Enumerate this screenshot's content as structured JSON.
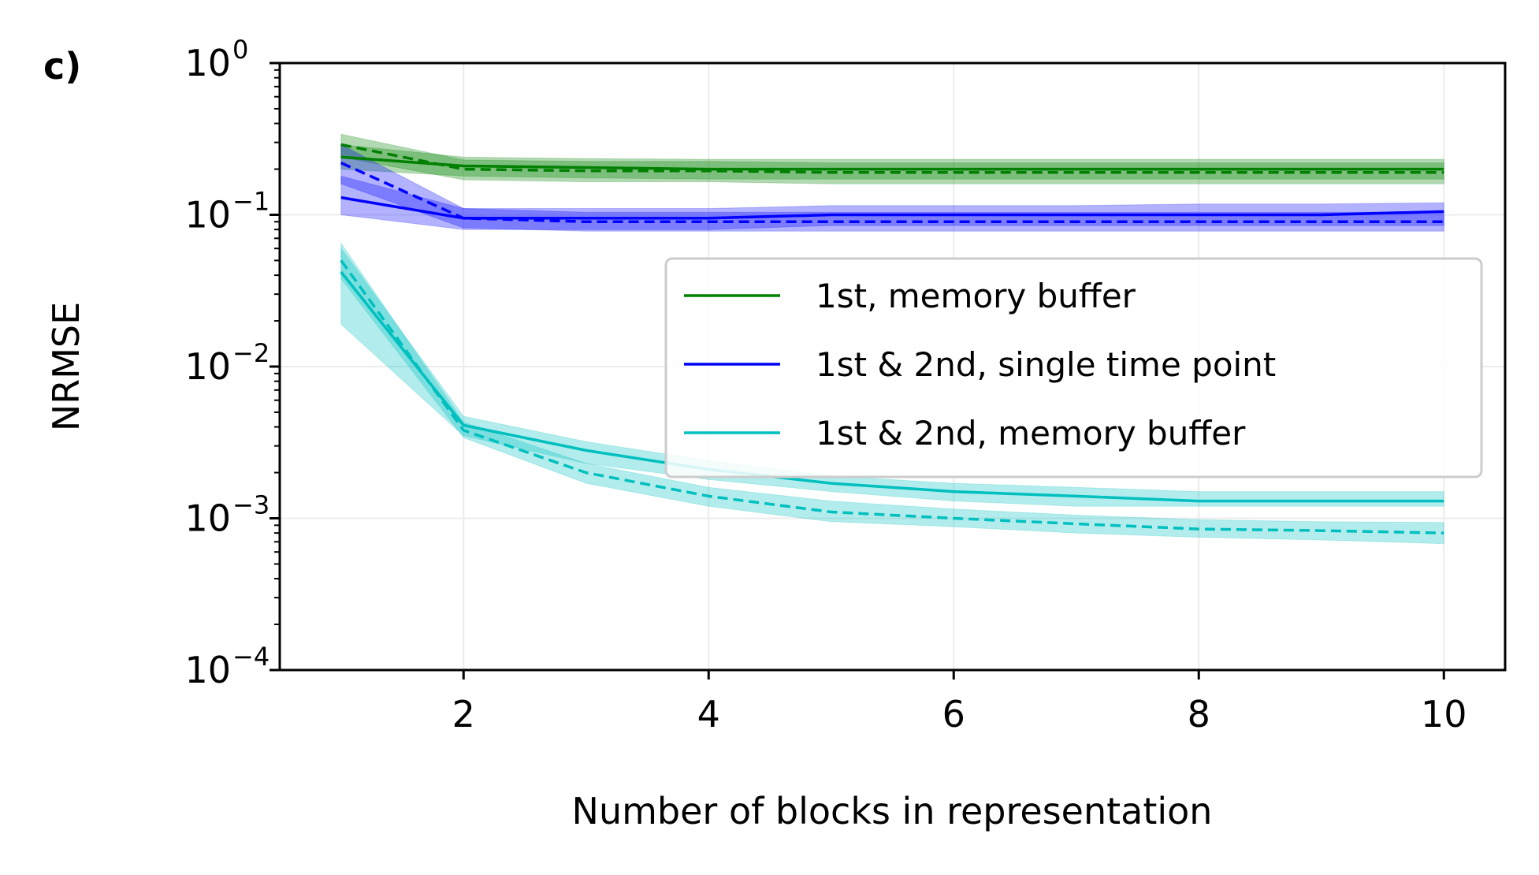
{
  "panel_label": "c)",
  "chart_data": {
    "type": "line",
    "xlabel": "Number of blocks in representation",
    "ylabel": "NRMSE",
    "xlim": [
      0.5,
      10.5
    ],
    "ylim": [
      0.0001,
      1
    ],
    "yscale": "log",
    "grid": true,
    "x_ticks": [
      2,
      4,
      6,
      8,
      10
    ],
    "y_ticks": [
      {
        "value": 0.0001,
        "base": "10",
        "exp": "−4"
      },
      {
        "value": 0.001,
        "base": "10",
        "exp": "−3"
      },
      {
        "value": 0.01,
        "base": "10",
        "exp": "−2"
      },
      {
        "value": 0.1,
        "base": "10",
        "exp": "−1"
      },
      {
        "value": 1,
        "base": "10",
        "exp": "0"
      }
    ],
    "legend_position": "center-right",
    "x": [
      1,
      2,
      3,
      4,
      5,
      6,
      7,
      8,
      9,
      10
    ],
    "series": [
      {
        "name": "1st, memory buffer",
        "color": "#008000",
        "solid": [
          0.24,
          0.21,
          0.205,
          0.2,
          0.2,
          0.2,
          0.2,
          0.2,
          0.2,
          0.2
        ],
        "solid_band": [
          [
            0.2,
            0.29
          ],
          [
            0.18,
            0.24
          ],
          [
            0.175,
            0.235
          ],
          [
            0.172,
            0.232
          ],
          [
            0.172,
            0.232
          ],
          [
            0.172,
            0.232
          ],
          [
            0.172,
            0.232
          ],
          [
            0.172,
            0.232
          ],
          [
            0.172,
            0.232
          ],
          [
            0.172,
            0.232
          ]
        ],
        "dashed": [
          0.29,
          0.2,
          0.195,
          0.195,
          0.19,
          0.19,
          0.19,
          0.19,
          0.19,
          0.19
        ],
        "dashed_band": [
          [
            0.24,
            0.34
          ],
          [
            0.17,
            0.23
          ],
          [
            0.165,
            0.225
          ],
          [
            0.165,
            0.225
          ],
          [
            0.16,
            0.22
          ],
          [
            0.16,
            0.22
          ],
          [
            0.16,
            0.22
          ],
          [
            0.16,
            0.22
          ],
          [
            0.16,
            0.22
          ],
          [
            0.16,
            0.22
          ]
        ]
      },
      {
        "name": "1st & 2nd, single time point",
        "color": "#0000ff",
        "solid": [
          0.13,
          0.095,
          0.095,
          0.095,
          0.1,
          0.1,
          0.1,
          0.1,
          0.1,
          0.105
        ],
        "solid_band": [
          [
            0.1,
            0.18
          ],
          [
            0.08,
            0.11
          ],
          [
            0.08,
            0.11
          ],
          [
            0.08,
            0.11
          ],
          [
            0.085,
            0.115
          ],
          [
            0.085,
            0.115
          ],
          [
            0.085,
            0.115
          ],
          [
            0.085,
            0.118
          ],
          [
            0.085,
            0.118
          ],
          [
            0.085,
            0.12
          ]
        ],
        "dashed": [
          0.22,
          0.095,
          0.09,
          0.09,
          0.09,
          0.09,
          0.09,
          0.09,
          0.09,
          0.09
        ],
        "dashed_band": [
          [
            0.16,
            0.29
          ],
          [
            0.082,
            0.11
          ],
          [
            0.078,
            0.104
          ],
          [
            0.078,
            0.104
          ],
          [
            0.078,
            0.104
          ],
          [
            0.078,
            0.104
          ],
          [
            0.078,
            0.104
          ],
          [
            0.078,
            0.104
          ],
          [
            0.078,
            0.104
          ],
          [
            0.078,
            0.104
          ]
        ]
      },
      {
        "name": "1st & 2nd, memory buffer",
        "color": "#00bfbf",
        "solid": [
          0.042,
          0.0041,
          0.0028,
          0.0021,
          0.0017,
          0.0015,
          0.0014,
          0.0013,
          0.0013,
          0.0013
        ],
        "solid_band": [
          [
            0.019,
            0.06
          ],
          [
            0.0035,
            0.0047
          ],
          [
            0.0023,
            0.0032
          ],
          [
            0.0018,
            0.0024
          ],
          [
            0.0015,
            0.0019
          ],
          [
            0.0013,
            0.0017
          ],
          [
            0.0012,
            0.0016
          ],
          [
            0.0012,
            0.0015
          ],
          [
            0.0012,
            0.0015
          ],
          [
            0.0012,
            0.0015
          ]
        ],
        "dashed": [
          0.05,
          0.0038,
          0.002,
          0.0014,
          0.0011,
          0.001,
          0.00092,
          0.00085,
          0.00083,
          0.0008
        ],
        "dashed_band": [
          [
            0.038,
            0.065
          ],
          [
            0.0034,
            0.0043
          ],
          [
            0.0017,
            0.0023
          ],
          [
            0.0012,
            0.0016
          ],
          [
            0.00095,
            0.0013
          ],
          [
            0.00088,
            0.00115
          ],
          [
            0.0008,
            0.00105
          ],
          [
            0.00075,
            0.00098
          ],
          [
            0.00072,
            0.00095
          ],
          [
            0.00068,
            0.00094
          ]
        ]
      }
    ]
  }
}
